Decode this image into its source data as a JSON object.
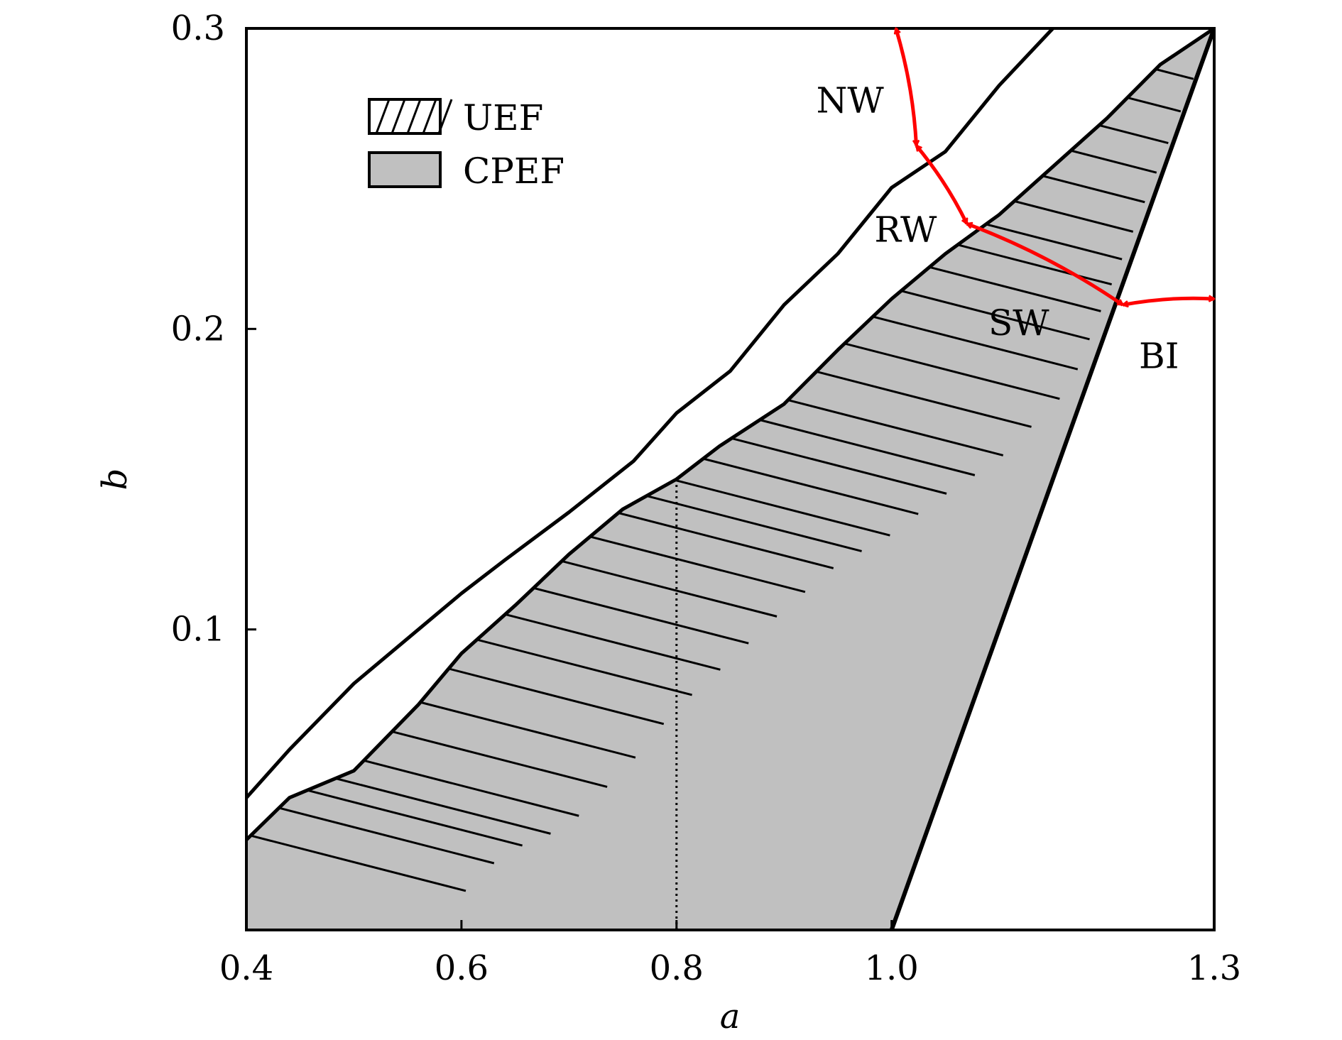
{
  "chart_data": {
    "type": "area",
    "xlabel": "a",
    "ylabel": "b",
    "xlim": [
      0.4,
      1.3
    ],
    "ylim": [
      0.0,
      0.3
    ],
    "xticks": [
      0.4,
      0.6,
      0.8,
      1.0,
      1.3
    ],
    "xtick_labels": [
      "0.4",
      "0.6",
      "0.8",
      "1.0",
      "1.3"
    ],
    "yticks": [
      0.1,
      0.2,
      0.3
    ],
    "ytick_labels": [
      "0.1",
      "0.2",
      "0.3"
    ],
    "grid": false,
    "legend_position": "top-left",
    "legend": [
      {
        "label": "UEF",
        "style": "hatched"
      },
      {
        "label": "CPEF",
        "style": "filled",
        "color": "#c0c0c0"
      }
    ],
    "series": [
      {
        "role": "upper-boundary",
        "x": [
          0.4,
          0.44,
          0.5,
          0.56,
          0.6,
          0.64,
          0.7,
          0.76,
          0.8,
          0.85,
          0.9,
          0.95,
          1.0,
          1.05,
          1.1,
          1.15
        ],
        "y": [
          0.044,
          0.06,
          0.082,
          0.1,
          0.112,
          0.123,
          0.139,
          0.156,
          0.172,
          0.186,
          0.208,
          0.225,
          0.247,
          0.259,
          0.281,
          0.3
        ]
      },
      {
        "role": "cpef-upper-boundary",
        "x": [
          0.4,
          0.44,
          0.5,
          0.56,
          0.6,
          0.65,
          0.7,
          0.75,
          0.8,
          0.84,
          0.9,
          0.95,
          1.0,
          1.05,
          1.1,
          1.15,
          1.2,
          1.25,
          1.3
        ],
        "y": [
          0.03,
          0.044,
          0.053,
          0.075,
          0.092,
          0.108,
          0.125,
          0.14,
          0.15,
          0.161,
          0.175,
          0.193,
          0.21,
          0.225,
          0.238,
          0.254,
          0.27,
          0.288,
          0.3
        ]
      },
      {
        "role": "cpef-lower-boundary",
        "x": [
          1.0,
          1.3
        ],
        "y": [
          0.0,
          0.3
        ]
      },
      {
        "role": "reference-line",
        "x": [
          0.8,
          0.8
        ],
        "y": [
          0.0,
          0.15
        ],
        "style": "dotted"
      }
    ],
    "annotations": [
      {
        "text": "NW",
        "x": 0.93,
        "y": 0.272
      },
      {
        "text": "RW",
        "x": 0.984,
        "y": 0.229
      },
      {
        "text": "SW",
        "x": 1.09,
        "y": 0.198
      },
      {
        "text": "BI",
        "x": 1.23,
        "y": 0.187
      }
    ],
    "bifurcation_curve": {
      "color": "#ff0000",
      "points": [
        {
          "a": 1.004,
          "b": 0.3
        },
        {
          "a": 1.023,
          "b": 0.261
        },
        {
          "a": 1.07,
          "b": 0.235
        },
        {
          "a": 1.215,
          "b": 0.208
        },
        {
          "a": 1.3,
          "b": 0.21
        }
      ]
    }
  }
}
